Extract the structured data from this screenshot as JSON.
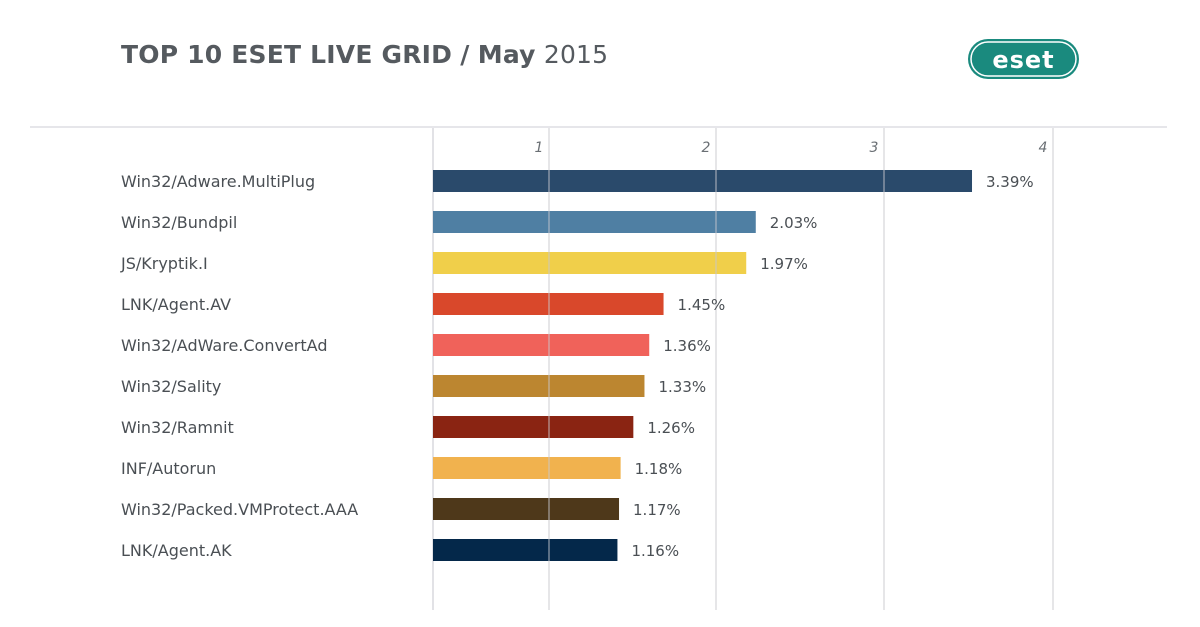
{
  "header": {
    "title_bold": "TOP 10 ESET LIVE GRID",
    "separator": "/",
    "month": "May",
    "year": "2015",
    "logo_text": "ESET",
    "logo_color": "#1a8a7e"
  },
  "chart_data": {
    "type": "bar",
    "orientation": "horizontal",
    "title": "TOP 10 ESET LIVE GRID / May 2015",
    "categories": [
      "Win32/Adware.MultiPlug",
      "Win32/Bundpil",
      "JS/Kryptik.I",
      "LNK/Agent.AV",
      "Win32/AdWare.ConvertAd",
      "Win32/Sality",
      "Win32/Ramnit",
      "INF/Autorun",
      "Win32/Packed.VMProtect.AAA",
      "LNK/Agent.AK"
    ],
    "values": [
      3.39,
      2.03,
      1.97,
      1.45,
      1.36,
      1.33,
      1.26,
      1.18,
      1.17,
      1.16
    ],
    "value_labels": [
      "3.39%",
      "2.03%",
      "1.97%",
      "1.45%",
      "1.36%",
      "1.33%",
      "1.26%",
      "1.18%",
      "1.17%",
      "1.16%"
    ],
    "colors": [
      "#2a4a6b",
      "#4f7fa3",
      "#f0cf4a",
      "#d9482b",
      "#f0625a",
      "#bc8630",
      "#8a2412",
      "#f1b24e",
      "#4e381a",
      "#04284a"
    ],
    "xticks": [
      "1",
      "2",
      "3",
      "4"
    ],
    "xlim": [
      0,
      4
    ],
    "grid": true
  }
}
